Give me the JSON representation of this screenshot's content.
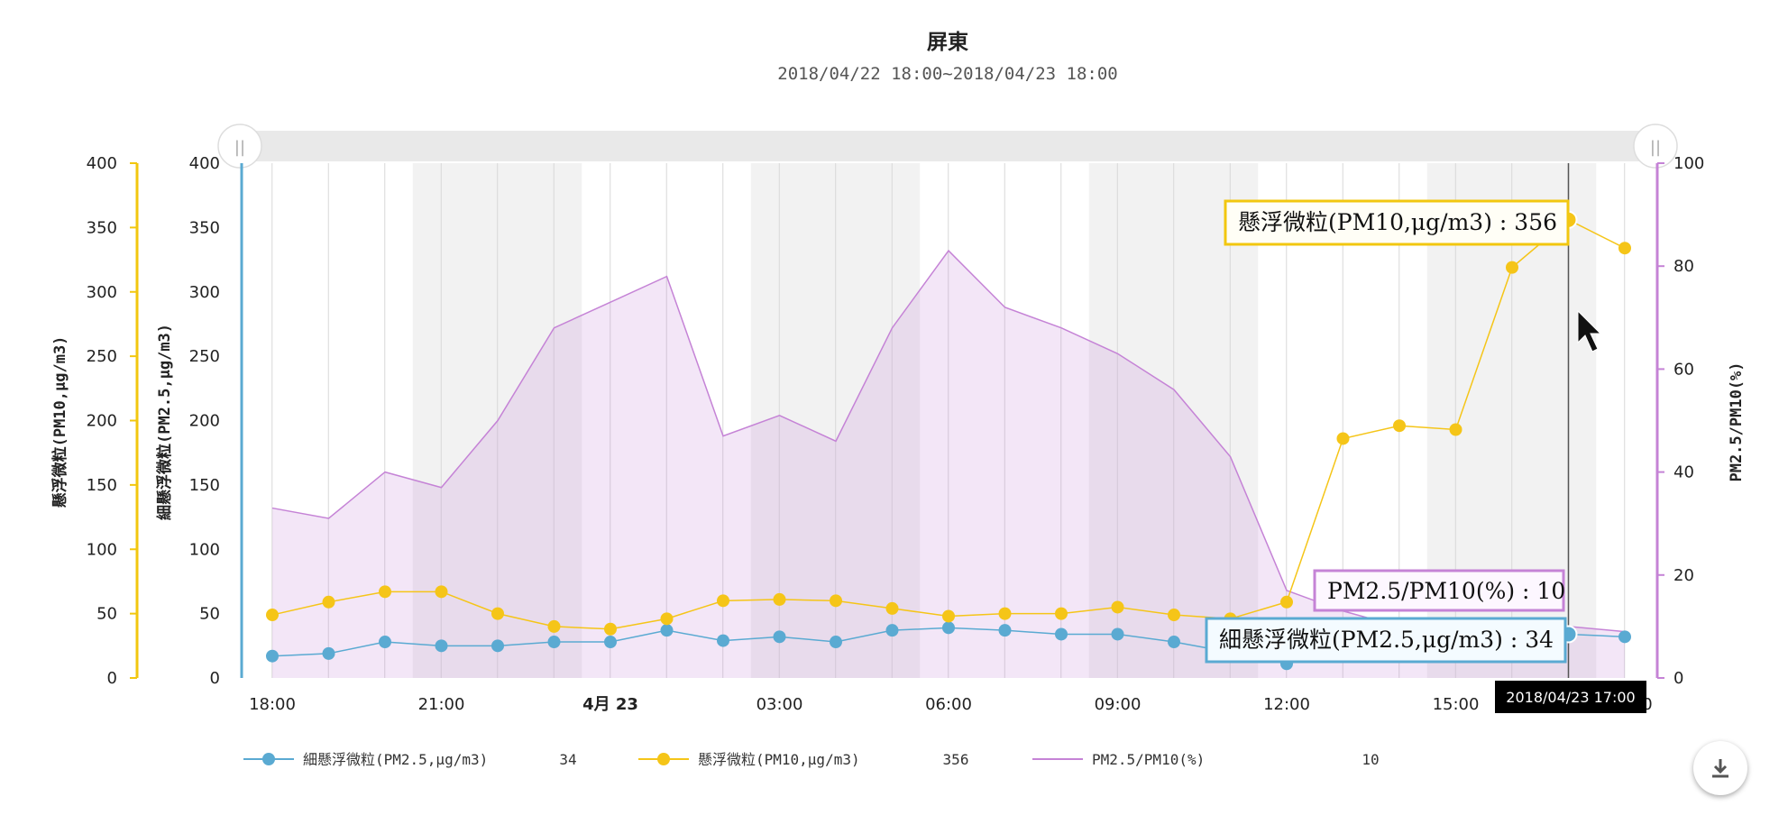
{
  "chart_data": {
    "type": "line",
    "title": "屏東",
    "subtitle": "2018/04/22 18:00~2018/04/23 18:00",
    "x_tick_labels": [
      "18:00",
      "21:00",
      "4月 23",
      "03:00",
      "06:00",
      "09:00",
      "12:00",
      "15:00",
      "0"
    ],
    "y_axes": [
      {
        "id": "pm10",
        "title": "懸浮微粒(PM10,μg/m3)",
        "side": "left-outer",
        "range": [
          0,
          400
        ],
        "ticks": [
          "0",
          "50",
          "100",
          "150",
          "200",
          "250",
          "300",
          "350",
          "400"
        ],
        "color": "#f2c70f"
      },
      {
        "id": "pm25",
        "title": "細懸浮微粒(PM2.5,μg/m3)",
        "side": "left-inner",
        "range": [
          0,
          400
        ],
        "ticks": [
          "0",
          "50",
          "100",
          "150",
          "200",
          "250",
          "300",
          "350",
          "400"
        ],
        "color": "#5aaad2"
      },
      {
        "id": "ratio",
        "title": "PM2.5/PM10(%)",
        "side": "right",
        "range": [
          0,
          100
        ],
        "ticks": [
          "0",
          "20",
          "40",
          "60",
          "80",
          "100"
        ],
        "color": "#c583d6"
      }
    ],
    "x_hours": [
      0,
      1,
      2,
      3,
      4,
      5,
      6,
      7,
      8,
      9,
      10,
      11,
      12,
      13,
      14,
      15,
      16,
      17,
      18,
      19,
      20,
      21,
      22,
      23,
      24
    ],
    "series": [
      {
        "name": "細懸浮微粒(PM2.5,μg/m3)",
        "axis": "pm25",
        "style": "line-marker",
        "color": "#5aaad2",
        "values": [
          17,
          19,
          28,
          25,
          25,
          28,
          28,
          37,
          29,
          32,
          28,
          37,
          39,
          37,
          34,
          34,
          28,
          20,
          11,
          20,
          19,
          19,
          20,
          34,
          32
        ]
      },
      {
        "name": "懸浮微粒(PM10,μg/m3)",
        "axis": "pm10",
        "style": "line-marker",
        "color": "#f5c518",
        "values": [
          49,
          59,
          67,
          67,
          50,
          40,
          38,
          46,
          60,
          61,
          60,
          54,
          48,
          50,
          50,
          55,
          49,
          46,
          59,
          186,
          196,
          193,
          319,
          356,
          334
        ]
      },
      {
        "name": "PM2.5/PM10(%)",
        "axis": "ratio",
        "style": "area",
        "color": "#c583d6",
        "values": [
          33,
          31,
          40,
          37,
          50,
          68,
          73,
          78,
          47,
          51,
          46,
          68,
          83,
          72,
          68,
          63,
          56,
          43,
          17,
          13,
          10,
          11,
          11,
          10,
          9
        ]
      }
    ],
    "legend": {
      "placement": "bottom",
      "items": [
        {
          "label": "細懸浮微粒(PM2.5,μg/m3)",
          "value": "34"
        },
        {
          "label": "懸浮微粒(PM10,μg/m3)",
          "value": "356"
        },
        {
          "label": "PM2.5/PM10(%)",
          "value": "10"
        }
      ]
    },
    "tooltip": {
      "hour_index": 23,
      "time_label": "2018/04/23 17:00",
      "pm10_text": "懸浮微粒(PM10,μg/m3) : 356",
      "ratio_text": "PM2.5/PM10(%) : 10",
      "pm25_text": "細懸浮微粒(PM2.5,μg/m3) : 34"
    },
    "navigator": {
      "handle_left": "||",
      "handle_right": "||"
    },
    "colors": {
      "plot_band": "#f2f2f2",
      "grid": "#d8d8d8",
      "navigator": "#e6e6e6",
      "cursor_line": "#555555"
    }
  },
  "controls": {
    "download_icon": "download-icon"
  }
}
